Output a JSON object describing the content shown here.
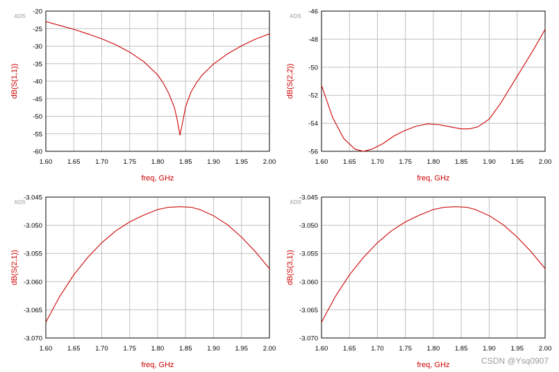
{
  "watermark": "CSDN @Ysq0907",
  "colors": {
    "curve": "#cc0000",
    "label": "#cc0000",
    "grid": "#c0c0c0",
    "frame": "#000000",
    "tag": "#b8b8b8"
  },
  "chart_data": [
    {
      "type": "line",
      "tag": "ADS",
      "xlabel": "freq, GHz",
      "ylabel": "dB(S(1,1))",
      "xlim": [
        1.6,
        2.0
      ],
      "ylim": [
        -60,
        -20
      ],
      "xticks": [
        "1.60",
        "1.65",
        "1.70",
        "1.75",
        "1.80",
        "1.85",
        "1.90",
        "1.95",
        "2.00"
      ],
      "yticks": [
        "-20",
        "-25",
        "-30",
        "-35",
        "-40",
        "-45",
        "-50",
        "-55",
        "-60"
      ],
      "grid": true,
      "series": [
        {
          "x": [
            1.6,
            1.625,
            1.65,
            1.675,
            1.7,
            1.725,
            1.75,
            1.775,
            1.8,
            1.81,
            1.82,
            1.83,
            1.835,
            1.84,
            1.845,
            1.85,
            1.86,
            1.87,
            1.88,
            1.9,
            1.925,
            1.95,
            1.975,
            2.0
          ],
          "values": [
            -23.0,
            -24.1,
            -25.2,
            -26.5,
            -27.9,
            -29.6,
            -31.7,
            -34.4,
            -38.2,
            -40.5,
            -43.5,
            -47.5,
            -51.0,
            -55.4,
            -51.5,
            -47.3,
            -43.0,
            -40.3,
            -38.2,
            -35.1,
            -32.2,
            -29.9,
            -28.0,
            -26.5
          ]
        }
      ]
    },
    {
      "type": "line",
      "tag": "ADS",
      "xlabel": "freq, GHz",
      "ylabel": "dB(S(2,2))",
      "xlim": [
        1.6,
        2.0
      ],
      "ylim": [
        -56,
        -46
      ],
      "xticks": [
        "1.60",
        "1.65",
        "1.70",
        "1.75",
        "1.80",
        "1.85",
        "1.90",
        "1.95",
        "2.00"
      ],
      "yticks": [
        "-46",
        "-48",
        "-50",
        "-52",
        "-54",
        "-56"
      ],
      "grid": true,
      "series": [
        {
          "x": [
            1.6,
            1.62,
            1.64,
            1.66,
            1.675,
            1.69,
            1.71,
            1.73,
            1.75,
            1.77,
            1.79,
            1.81,
            1.83,
            1.85,
            1.865,
            1.88,
            1.9,
            1.92,
            1.94,
            1.96,
            1.98,
            2.0
          ],
          "values": [
            -51.3,
            -53.6,
            -55.1,
            -55.85,
            -56.0,
            -55.85,
            -55.45,
            -54.9,
            -54.5,
            -54.2,
            -54.05,
            -54.1,
            -54.25,
            -54.4,
            -54.4,
            -54.25,
            -53.7,
            -52.6,
            -51.3,
            -50.0,
            -48.7,
            -47.3
          ]
        }
      ]
    },
    {
      "type": "line",
      "tag": "ADS",
      "xlabel": "freq, GHz",
      "ylabel": "dB(S(2,1))",
      "xlim": [
        1.6,
        2.0
      ],
      "ylim": [
        -3.07,
        -3.045
      ],
      "xticks": [
        "1.60",
        "1.65",
        "1.70",
        "1.75",
        "1.80",
        "1.85",
        "1.90",
        "1.95",
        "2.00"
      ],
      "yticks": [
        "-3.045",
        "-3.050",
        "-3.055",
        "-3.060",
        "-3.065",
        "-3.070"
      ],
      "grid": true,
      "series": [
        {
          "x": [
            1.6,
            1.625,
            1.65,
            1.675,
            1.7,
            1.725,
            1.75,
            1.775,
            1.8,
            1.82,
            1.84,
            1.86,
            1.875,
            1.9,
            1.925,
            1.95,
            1.975,
            2.0
          ],
          "values": [
            -3.0672,
            -3.0626,
            -3.0588,
            -3.0557,
            -3.0531,
            -3.051,
            -3.0494,
            -3.0482,
            -3.0472,
            -3.0468,
            -3.0467,
            -3.0468,
            -3.0472,
            -3.0483,
            -3.0499,
            -3.0521,
            -3.0547,
            -3.0577
          ]
        }
      ]
    },
    {
      "type": "line",
      "tag": "ADS",
      "xlabel": "freq, GHz",
      "ylabel": "dB(S(3,1))",
      "xlim": [
        1.6,
        2.0
      ],
      "ylim": [
        -3.07,
        -3.045
      ],
      "xticks": [
        "1.60",
        "1.65",
        "1.70",
        "1.75",
        "1.80",
        "1.85",
        "1.90",
        "1.95",
        "2.00"
      ],
      "yticks": [
        "-3.045",
        "-3.050",
        "-3.055",
        "-3.060",
        "-3.065",
        "-3.070"
      ],
      "grid": true,
      "series": [
        {
          "x": [
            1.6,
            1.625,
            1.65,
            1.675,
            1.7,
            1.725,
            1.75,
            1.775,
            1.8,
            1.82,
            1.84,
            1.86,
            1.875,
            1.9,
            1.925,
            1.95,
            1.975,
            2.0
          ],
          "values": [
            -3.0672,
            -3.0626,
            -3.0588,
            -3.0557,
            -3.0531,
            -3.051,
            -3.0494,
            -3.0482,
            -3.0472,
            -3.0468,
            -3.0467,
            -3.0468,
            -3.0472,
            -3.0483,
            -3.0499,
            -3.0521,
            -3.0547,
            -3.0577
          ]
        }
      ]
    }
  ]
}
